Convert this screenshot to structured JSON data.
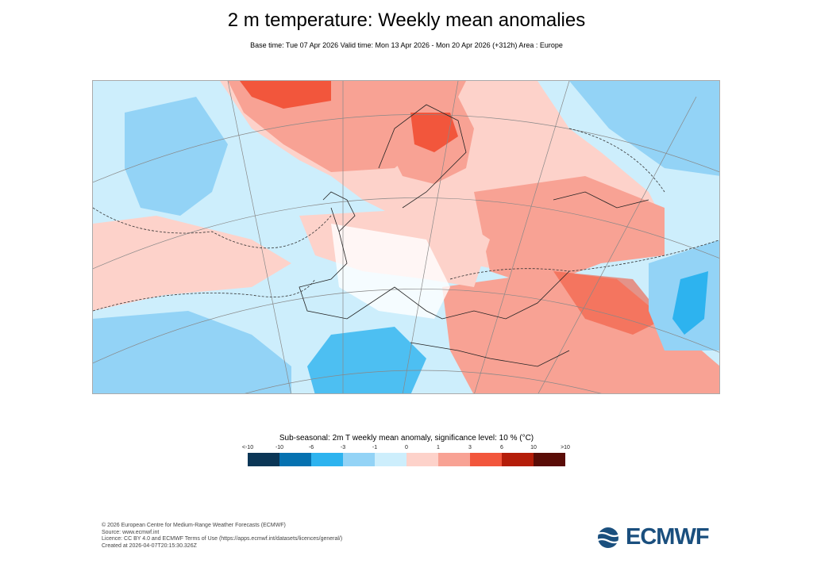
{
  "header": {
    "title": "2 m temperature: Weekly mean anomalies",
    "subtitle": "Base time: Tue 07 Apr 2026 Valid time: Mon 13 Apr 2026 - Mon 20 Apr 2026 (+312h) Area : Europe"
  },
  "map": {
    "area": "Europe",
    "projection": "conic",
    "significance_contours": "dashed"
  },
  "legend": {
    "title": "Sub-seasonal: 2m T weekly mean anomaly, significance level: 10 % (°C)",
    "ticks": [
      "<-10",
      "-10",
      "-6",
      "-3",
      "-1",
      "0",
      "1",
      "3",
      "6",
      "10",
      ">10"
    ],
    "colors": [
      "#0b3656",
      "#0571b0",
      "#2db3ef",
      "#93d3f6",
      "#cdeefc",
      "#fdd2ca",
      "#f8a294",
      "#f2563c",
      "#b41d09",
      "#5a0d07"
    ]
  },
  "footer": {
    "lines": [
      "© 2026 European Centre for Medium-Range Weather Forecasts (ECMWF)",
      "Source: www.ecmwf.int",
      "Licence: CC BY 4.0 and ECMWF Terms of Use (https://apps.ecmwf.int/datasets/licences/general/)",
      "Created at 2026-04-07T20:15:30.326Z"
    ]
  },
  "logo": {
    "text": "ECMWF",
    "color": "#1a4f7e"
  }
}
